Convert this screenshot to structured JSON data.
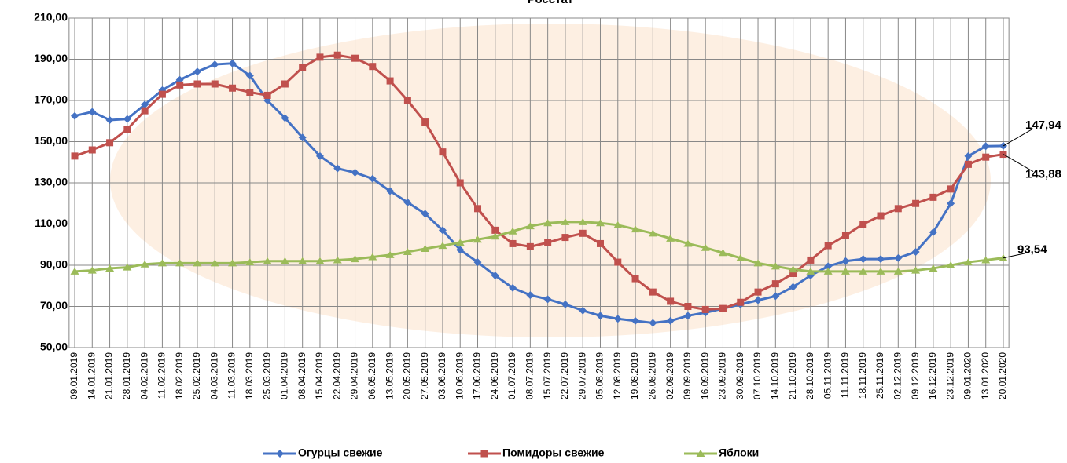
{
  "chart_data": {
    "type": "line",
    "title": "Росстат",
    "categories": [
      "09.01.2019",
      "14.01.2019",
      "21.01.2019",
      "28.01.2019",
      "04.02.2019",
      "11.02.2019",
      "18.02.2019",
      "25.02.2019",
      "04.03.2019",
      "11.03.2019",
      "18.03.2019",
      "25.03.2019",
      "01.04.2019",
      "08.04.2019",
      "15.04.2019",
      "22.04.2019",
      "29.04.2019",
      "06.05.2019",
      "13.05.2019",
      "20.05.2019",
      "27.05.2019",
      "03.06.2019",
      "10.06.2019",
      "17.06.2019",
      "24.06.2019",
      "01.07.2019",
      "08.07.2019",
      "15.07.2019",
      "22.07.2019",
      "29.07.2019",
      "05.08.2019",
      "12.08.2019",
      "19.08.2019",
      "26.08.2019",
      "02.09.2019",
      "09.09.2019",
      "16.09.2019",
      "23.09.2019",
      "30.09.2019",
      "07.10.2019",
      "14.10.2019",
      "21.10.2019",
      "28.10.2019",
      "05.11.2019",
      "11.11.2019",
      "18.11.2019",
      "25.11.2019",
      "02.12.2019",
      "09.12.2019",
      "16.12.2019",
      "23.12.2019",
      "09.01.2020",
      "13.01.2020",
      "20.01.2020"
    ],
    "series": [
      {
        "name": "Огурцы свежие",
        "color": "#4472c4",
        "values": [
          162.5,
          164.5,
          160.5,
          161,
          168,
          175,
          180,
          184,
          187.5,
          188,
          182,
          170,
          161.5,
          152,
          143,
          137,
          135,
          132,
          126,
          120.5,
          115,
          107,
          97.5,
          91.5,
          85,
          79,
          75.5,
          73.5,
          71,
          68,
          65.5,
          64,
          63,
          62,
          63,
          65.5,
          67,
          69,
          71,
          73,
          75,
          79.5,
          85,
          89.5,
          92,
          93,
          93,
          93.5,
          96.5,
          106,
          120,
          143,
          147.8,
          147.94
        ],
        "value_labels": [
          null,
          null,
          null,
          null,
          null,
          null,
          null,
          null,
          null,
          null,
          null,
          null,
          null,
          null,
          null,
          null,
          null,
          null,
          null,
          null,
          null,
          null,
          null,
          null,
          null,
          null,
          null,
          null,
          null,
          null,
          null,
          null,
          null,
          null,
          null,
          null,
          null,
          null,
          null,
          null,
          null,
          null,
          null,
          null,
          null,
          null,
          null,
          null,
          null,
          null,
          null,
          null,
          null,
          "147,94"
        ]
      },
      {
        "name": "Помидоры свежие",
        "color": "#c0504d",
        "values": [
          143,
          146,
          149.5,
          156,
          165,
          173,
          177.5,
          178,
          178,
          176,
          174,
          172.5,
          178,
          186,
          191,
          192,
          190.5,
          186.5,
          179.5,
          170,
          159.5,
          145,
          130,
          117.5,
          107,
          100.5,
          99,
          101,
          103.5,
          105.5,
          100.5,
          91.5,
          83.5,
          77,
          72.5,
          70,
          68.5,
          69,
          72,
          77,
          81,
          86,
          92.5,
          99.5,
          104.5,
          110,
          114,
          117.5,
          120,
          123,
          127,
          139,
          142.5,
          143.88
        ],
        "value_labels": [
          null,
          null,
          null,
          null,
          null,
          null,
          null,
          null,
          null,
          null,
          null,
          null,
          null,
          null,
          null,
          null,
          null,
          null,
          null,
          null,
          null,
          null,
          null,
          null,
          null,
          null,
          null,
          null,
          null,
          null,
          null,
          null,
          null,
          null,
          null,
          null,
          null,
          null,
          null,
          null,
          null,
          null,
          null,
          null,
          null,
          null,
          null,
          null,
          null,
          null,
          null,
          null,
          null,
          "143,88"
        ]
      },
      {
        "name": "Яблоки",
        "color": "#9bbb59",
        "values": [
          87,
          87.5,
          88.5,
          89,
          90.5,
          91,
          91,
          91,
          91,
          91,
          91.5,
          92,
          92,
          92,
          92,
          92.5,
          93,
          94,
          95,
          96.5,
          98,
          99.5,
          101,
          102.5,
          104,
          106.5,
          109,
          110.5,
          111,
          111,
          110.5,
          109.5,
          107.5,
          105.5,
          103,
          100.5,
          98.5,
          96,
          93.5,
          91,
          89.5,
          88,
          87,
          87,
          87,
          87,
          87,
          87,
          87.5,
          88.5,
          90,
          91.5,
          92.5,
          93.54
        ],
        "value_labels": [
          null,
          null,
          null,
          null,
          null,
          null,
          null,
          null,
          null,
          null,
          null,
          null,
          null,
          null,
          null,
          null,
          null,
          null,
          null,
          null,
          null,
          null,
          null,
          null,
          null,
          null,
          null,
          null,
          null,
          null,
          null,
          null,
          null,
          null,
          null,
          null,
          null,
          null,
          null,
          null,
          null,
          null,
          null,
          null,
          null,
          null,
          null,
          null,
          null,
          null,
          null,
          null,
          null,
          "93,54"
        ]
      }
    ],
    "ylim": [
      50,
      210
    ],
    "yticks": [
      {
        "value": 50,
        "label": "50,00"
      },
      {
        "value": 70,
        "label": "70,00"
      },
      {
        "value": 90,
        "label": "90,00"
      },
      {
        "value": 110,
        "label": "110,00"
      },
      {
        "value": 130,
        "label": "130,00"
      },
      {
        "value": 150,
        "label": "150,00"
      },
      {
        "value": 170,
        "label": "170,00"
      },
      {
        "value": 190,
        "label": "190,00"
      },
      {
        "value": 210,
        "label": "210,00"
      }
    ],
    "grid": true,
    "legend": "bottom"
  }
}
